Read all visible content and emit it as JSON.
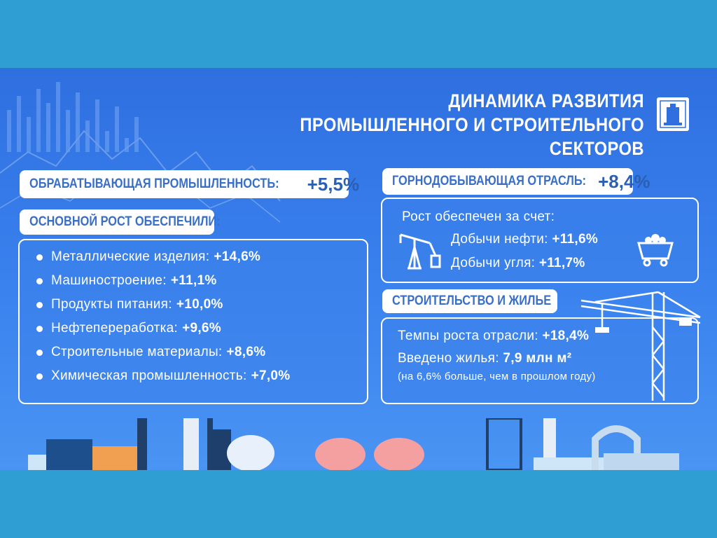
{
  "title": {
    "line1": "ДИНАМИКА РАЗВИТИЯ",
    "line2": "ПРОМЫШЛЕННОГО И СТРОИТЕЛЬНОГО СЕКТОРОВ"
  },
  "manufacturing": {
    "label": "ОБРАБАТЫВАЮЩАЯ ПРОМЫШЛЕННОСТЬ:",
    "value": "+5,5%",
    "growth_header": "ОСНОВНОЙ РОСТ ОБЕСПЕЧИЛИ:",
    "items": [
      {
        "name": "Металлические изделия:",
        "value": "+14,6%"
      },
      {
        "name": "Машиностроение:",
        "value": "+11,1%"
      },
      {
        "name": "Продукты питания:",
        "value": "+10,0%"
      },
      {
        "name": "Нефтепереработка:",
        "value": "+9,6%"
      },
      {
        "name": "Строительные материалы:",
        "value": "+8,6%"
      },
      {
        "name": "Химическая промышленность:",
        "value": "+7,0%"
      }
    ]
  },
  "mining": {
    "label": "ГОРНОДОБЫВАЮЩАЯ ОТРАСЛЬ:",
    "value": "+8,4%",
    "intro": "Рост обеспечен за счет:",
    "oil_label": "Добычи нефти:",
    "oil_value": "+11,6%",
    "coal_label": "Добычи угля:",
    "coal_value": "+11,7%"
  },
  "construction": {
    "label": "СТРОИТЕЛЬСТВО И ЖИЛЬЕ",
    "growth_label": "Темпы роста отрасли:",
    "growth_value": "+18,4%",
    "housing_label": "Введено жилья:",
    "housing_value": "7,9 млн м²",
    "note": "(на 6,6% больше, чем в прошлом году)"
  },
  "icons": [
    "emblem-icon",
    "oil-pump-icon",
    "coal-cart-icon",
    "crane-icon",
    "factory-skyline-icon"
  ],
  "colors": {
    "frame": "#2f9fd3",
    "background": "#3a82ee",
    "pill_text": "#3a6fc8",
    "white": "#ffffff"
  }
}
